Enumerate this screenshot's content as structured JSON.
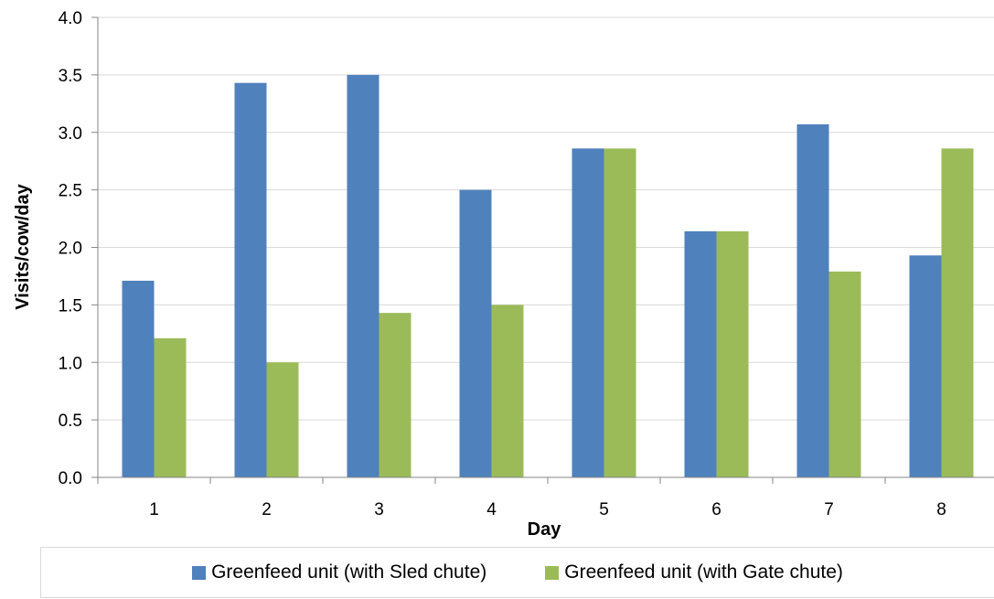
{
  "chart_data": {
    "type": "bar",
    "xlabel": "Day",
    "ylabel": "Visits/cow/day",
    "ylim": [
      0,
      4.0
    ],
    "yticks": [
      "0.0",
      "0.5",
      "1.0",
      "1.5",
      "2.0",
      "2.5",
      "3.0",
      "3.5",
      "4.0"
    ],
    "categories": [
      "1",
      "2",
      "3",
      "4",
      "5",
      "6",
      "7",
      "8"
    ],
    "series": [
      {
        "name": "Greenfeed unit (with Sled chute)",
        "color": "#4f81bd",
        "values": [
          1.71,
          3.43,
          3.5,
          2.5,
          2.86,
          2.14,
          3.07,
          1.93
        ]
      },
      {
        "name": "Greenfeed unit (with Gate chute)",
        "color": "#9bbb59",
        "values": [
          1.21,
          1.0,
          1.43,
          1.5,
          2.86,
          2.14,
          1.79,
          2.86
        ]
      }
    ],
    "grid": true,
    "legend_position": "bottom"
  }
}
